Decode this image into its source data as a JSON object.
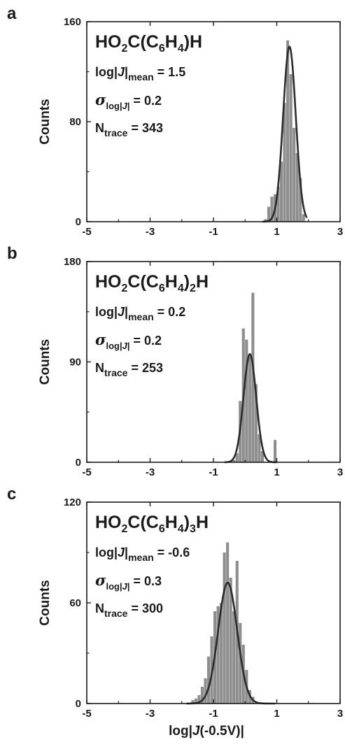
{
  "chart_data": [
    {
      "type": "bar",
      "panel": "a",
      "title": "HO2C(C6H4)H",
      "title_parts": [
        "HO",
        "2",
        "C(C",
        "6",
        "H",
        "4",
        ")H"
      ],
      "stats": {
        "mean_label": "log|J|mean",
        "mean_value": "= 1.5",
        "sigma_label": "σlog|J|",
        "sigma_value": "= 0.2",
        "ntrace_label": "Ntrace",
        "ntrace_value": "= 343"
      },
      "ylabel": "Counts",
      "xlabel": "",
      "xlim": [
        -5,
        3
      ],
      "ylim": [
        0,
        160
      ],
      "xticks": [
        "-5",
        "-3",
        "-1",
        "1",
        "3"
      ],
      "yticks": [
        "0",
        "80",
        "160"
      ],
      "bin_width": 0.1,
      "bins": [
        {
          "x": 0.65,
          "count": 2
        },
        {
          "x": 0.75,
          "count": 12
        },
        {
          "x": 0.85,
          "count": 20
        },
        {
          "x": 0.95,
          "count": 22
        },
        {
          "x": 1.05,
          "count": 28
        },
        {
          "x": 1.15,
          "count": 48
        },
        {
          "x": 1.25,
          "count": 95
        },
        {
          "x": 1.35,
          "count": 145
        },
        {
          "x": 1.45,
          "count": 118
        },
        {
          "x": 1.55,
          "count": 75
        },
        {
          "x": 1.65,
          "count": 55
        },
        {
          "x": 1.75,
          "count": 35
        },
        {
          "x": 1.85,
          "count": 6
        }
      ],
      "fit": {
        "mean": 1.4,
        "sigma": 0.2,
        "amplitude": 140,
        "range": [
          0.55,
          1.95
        ]
      }
    },
    {
      "type": "bar",
      "panel": "b",
      "title": "HO2C(C6H4)2H",
      "title_parts": [
        "HO",
        "2",
        "C(C",
        "6",
        "H",
        "4",
        ")",
        "2",
        "H"
      ],
      "stats": {
        "mean_label": "log|J|mean",
        "mean_value": "= 0.2",
        "sigma_label": "σlog|J|",
        "sigma_value": "= 0.2",
        "ntrace_label": "Ntrace",
        "ntrace_value": "= 253"
      },
      "ylabel": "Counts",
      "xlabel": "",
      "xlim": [
        -5,
        3
      ],
      "ylim": [
        0,
        180
      ],
      "xticks": [
        "-5",
        "-3",
        "-1",
        "1",
        "3"
      ],
      "yticks": [
        "0",
        "90",
        "180"
      ],
      "bin_width": 0.1,
      "bins": [
        {
          "x": -0.35,
          "count": 2
        },
        {
          "x": -0.25,
          "count": 8
        },
        {
          "x": -0.15,
          "count": 55
        },
        {
          "x": -0.05,
          "count": 120
        },
        {
          "x": 0.05,
          "count": 110
        },
        {
          "x": 0.15,
          "count": 95
        },
        {
          "x": 0.25,
          "count": 152
        },
        {
          "x": 0.35,
          "count": 70
        },
        {
          "x": 0.45,
          "count": 25
        },
        {
          "x": 0.55,
          "count": 10
        },
        {
          "x": 0.95,
          "count": 20
        }
      ],
      "fit": {
        "mean": 0.15,
        "sigma": 0.2,
        "amplitude": 97,
        "range": [
          -0.65,
          1.0
        ]
      }
    },
    {
      "type": "bar",
      "panel": "c",
      "title": "HO2C(C6H4)3H",
      "title_parts": [
        "HO",
        "2",
        "C(C",
        "6",
        "H",
        "4",
        ")",
        "3",
        "H"
      ],
      "stats": {
        "mean_label": "log|J|mean",
        "mean_value": "= -0.6",
        "sigma_label": "σlog|J|",
        "sigma_value": "= 0.3",
        "ntrace_label": "Ntrace",
        "ntrace_value": "= 300"
      },
      "ylabel": "Counts",
      "xlabel": "log|J(-0.5V)|",
      "xlim": [
        -5,
        3
      ],
      "ylim": [
        0,
        120
      ],
      "xticks": [
        "-5",
        "-3",
        "-1",
        "1",
        "3"
      ],
      "yticks": [
        "0",
        "60",
        "120"
      ],
      "bin_width": 0.1,
      "bins": [
        {
          "x": -1.65,
          "count": 2
        },
        {
          "x": -1.55,
          "count": 3
        },
        {
          "x": -1.45,
          "count": 5
        },
        {
          "x": -1.35,
          "count": 10
        },
        {
          "x": -1.25,
          "count": 15
        },
        {
          "x": -1.15,
          "count": 28
        },
        {
          "x": -1.05,
          "count": 40
        },
        {
          "x": -0.95,
          "count": 55
        },
        {
          "x": -0.85,
          "count": 58
        },
        {
          "x": -0.75,
          "count": 60
        },
        {
          "x": -0.65,
          "count": 90
        },
        {
          "x": -0.55,
          "count": 96
        },
        {
          "x": -0.45,
          "count": 75
        },
        {
          "x": -0.35,
          "count": 55
        },
        {
          "x": -0.25,
          "count": 85
        },
        {
          "x": -0.15,
          "count": 48
        },
        {
          "x": -0.05,
          "count": 35
        },
        {
          "x": 0.05,
          "count": 20
        },
        {
          "x": 0.15,
          "count": 8
        },
        {
          "x": 0.25,
          "count": 4
        }
      ],
      "fit": {
        "mean": -0.55,
        "sigma": 0.3,
        "amplitude": 72,
        "range": [
          -1.85,
          0.95
        ]
      }
    }
  ],
  "colors": {
    "bar": "#8e8e8e",
    "fit": "#2b2b2b",
    "axis": "#1a1a1a"
  }
}
